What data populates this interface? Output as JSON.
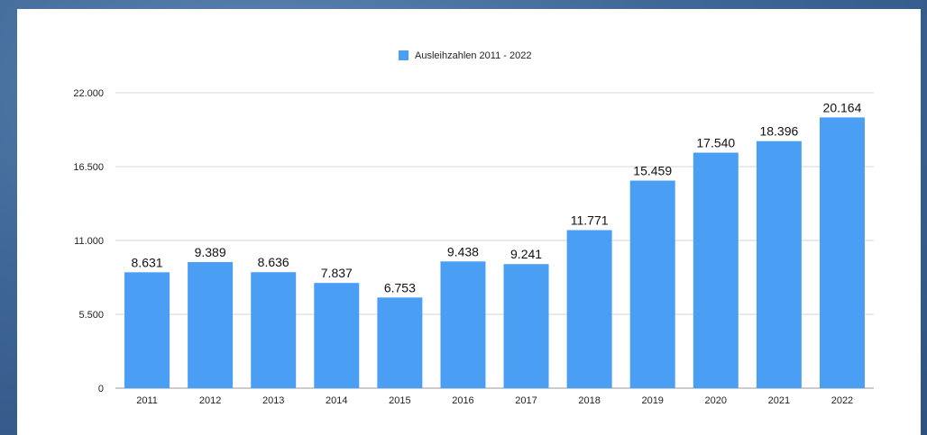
{
  "chart_data": {
    "type": "bar",
    "categories": [
      "2011",
      "2012",
      "2013",
      "2014",
      "2015",
      "2016",
      "2017",
      "2018",
      "2019",
      "2020",
      "2021",
      "2022"
    ],
    "series": [
      {
        "name": "Ausleihzahlen 2011 - 2022",
        "values": [
          8631,
          9389,
          8636,
          7837,
          6753,
          9438,
          9241,
          11771,
          15459,
          17540,
          18396,
          20164
        ],
        "labels": [
          "8.631",
          "9.389",
          "8.636",
          "7.837",
          "6.753",
          "9.438",
          "9.241",
          "11.771",
          "15.459",
          "17.540",
          "18.396",
          "20.164"
        ]
      }
    ],
    "y_ticks": [
      0,
      5500,
      11000,
      16500,
      22000
    ],
    "y_tick_labels": [
      "0",
      "5.500",
      "11.000",
      "16.500",
      "22.000"
    ],
    "ylim": [
      0,
      22000
    ],
    "grid": true,
    "legend": "top-center",
    "colors": {
      "bar": "#4a9ff5"
    }
  }
}
